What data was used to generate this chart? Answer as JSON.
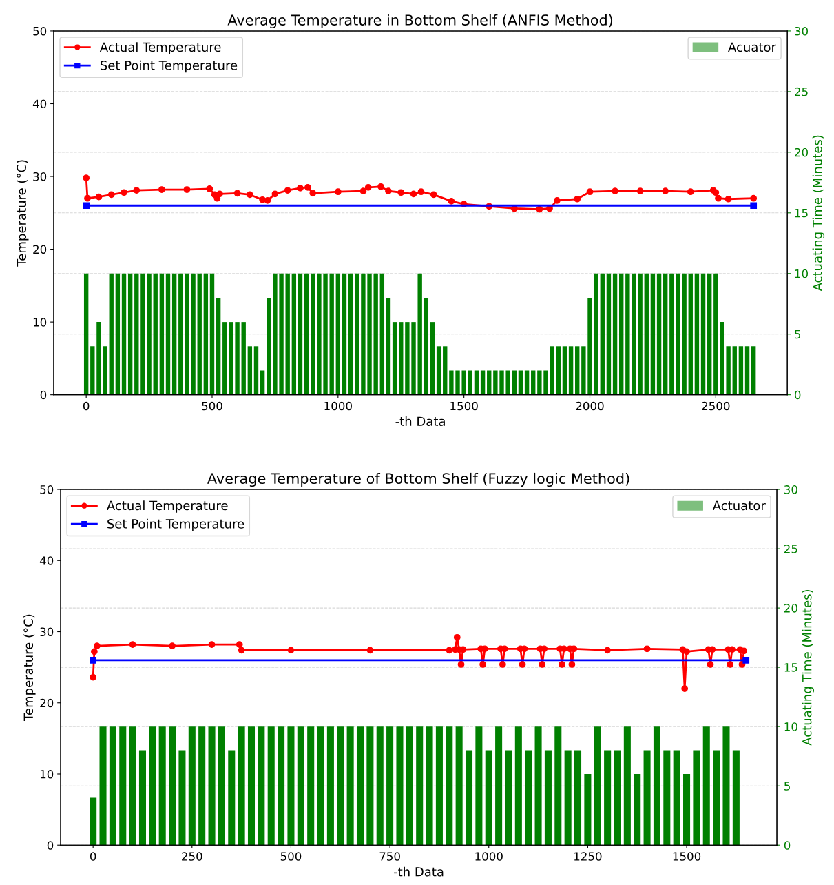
{
  "chart_data": [
    {
      "type": "line",
      "title": "Average Temperature in Bottom Shelf (ANFIS Method)",
      "xlabel": "-th Data",
      "ylabel": "Temperature (°C)",
      "y2label": "Actuating Time (Minutes)",
      "xlim": [
        -129,
        2784
      ],
      "xticks": [
        0,
        500,
        1000,
        1500,
        2000,
        2500
      ],
      "ylim": [
        0,
        50
      ],
      "yticks": [
        0,
        10,
        20,
        30,
        40,
        50
      ],
      "y2lim": [
        0,
        30
      ],
      "y2ticks": [
        0,
        5,
        10,
        15,
        20,
        25,
        30
      ],
      "grid": "y2",
      "legend": "top left",
      "series": [
        {
          "name": "Actual Temperature",
          "color": "#ff0000",
          "marker": "circle",
          "x": [
            0,
            5,
            50,
            100,
            150,
            200,
            300,
            400,
            490,
            510,
            520,
            530,
            600,
            650,
            700,
            720,
            750,
            800,
            850,
            880,
            900,
            1000,
            1100,
            1120,
            1170,
            1200,
            1250,
            1300,
            1330,
            1380,
            1450,
            1500,
            1600,
            1700,
            1800,
            1840,
            1870,
            1950,
            2000,
            2100,
            2200,
            2300,
            2400,
            2490,
            2500,
            2510,
            2550,
            2650
          ],
          "values": [
            29.8,
            27.0,
            27.2,
            27.5,
            27.8,
            28.1,
            28.2,
            28.2,
            28.3,
            27.5,
            27.0,
            27.6,
            27.7,
            27.5,
            26.8,
            26.7,
            27.6,
            28.1,
            28.4,
            28.5,
            27.7,
            27.9,
            28.0,
            28.5,
            28.6,
            28.0,
            27.8,
            27.6,
            27.9,
            27.5,
            26.6,
            26.2,
            25.9,
            25.6,
            25.5,
            25.6,
            26.7,
            26.9,
            27.9,
            28.0,
            28.0,
            28.0,
            27.9,
            28.1,
            27.8,
            27.0,
            26.9,
            27.0
          ]
        },
        {
          "name": "Set Point Temperature",
          "color": "#0000ff",
          "marker": "square",
          "x": [
            0,
            2650
          ],
          "values": [
            26,
            26
          ]
        },
        {
          "name": "Acuator",
          "type": "bar",
          "axis": "y2",
          "color": "#008000",
          "x": [
            0,
            25,
            50,
            75,
            100,
            125,
            150,
            175,
            200,
            225,
            250,
            275,
            300,
            325,
            350,
            375,
            400,
            425,
            450,
            475,
            500,
            525,
            550,
            575,
            600,
            625,
            650,
            675,
            700,
            725,
            750,
            775,
            800,
            825,
            850,
            875,
            900,
            925,
            950,
            975,
            1000,
            1025,
            1050,
            1075,
            1100,
            1125,
            1150,
            1175,
            1200,
            1225,
            1250,
            1275,
            1300,
            1325,
            1350,
            1375,
            1400,
            1425,
            1450,
            1475,
            1500,
            1525,
            1550,
            1575,
            1600,
            1625,
            1650,
            1675,
            1700,
            1725,
            1750,
            1775,
            1800,
            1825,
            1850,
            1875,
            1900,
            1925,
            1950,
            1975,
            2000,
            2025,
            2050,
            2075,
            2100,
            2125,
            2150,
            2175,
            2200,
            2225,
            2250,
            2275,
            2300,
            2325,
            2350,
            2375,
            2400,
            2425,
            2450,
            2475,
            2500,
            2525,
            2550,
            2575,
            2600,
            2625,
            2650
          ],
          "values": [
            10,
            4,
            6,
            4,
            10,
            10,
            10,
            10,
            10,
            10,
            10,
            10,
            10,
            10,
            10,
            10,
            10,
            10,
            10,
            10,
            10,
            8,
            6,
            6,
            6,
            6,
            4,
            4,
            2,
            8,
            10,
            10,
            10,
            10,
            10,
            10,
            10,
            10,
            10,
            10,
            10,
            10,
            10,
            10,
            10,
            10,
            10,
            10,
            8,
            6,
            6,
            6,
            6,
            10,
            8,
            6,
            4,
            4,
            2,
            2,
            2,
            2,
            2,
            2,
            2,
            2,
            2,
            2,
            2,
            2,
            2,
            2,
            2,
            2,
            4,
            4,
            4,
            4,
            4,
            4,
            8,
            10,
            10,
            10,
            10,
            10,
            10,
            10,
            10,
            10,
            10,
            10,
            10,
            10,
            10,
            10,
            10,
            10,
            10,
            10,
            10,
            6,
            4,
            4,
            4,
            4,
            4
          ]
        }
      ]
    },
    {
      "type": "line",
      "title": "Average Temperature of Bottom Shelf (Fuzzy logic Method)",
      "xlabel": "-th Data",
      "ylabel": "Temperature (°C)",
      "y2label": "Actuating Time (Minutes)",
      "xlim": [
        -82,
        1728
      ],
      "xticks": [
        0,
        250,
        500,
        750,
        1000,
        1250,
        1500
      ],
      "ylim": [
        0,
        50
      ],
      "yticks": [
        0,
        10,
        20,
        30,
        40,
        50
      ],
      "y2lim": [
        0,
        30
      ],
      "y2ticks": [
        0,
        5,
        10,
        15,
        20,
        25,
        30
      ],
      "grid": "y2",
      "legend": "top left",
      "series": [
        {
          "name": "Actual Temperature",
          "color": "#ff0000",
          "marker": "circle",
          "x": [
            0,
            3,
            10,
            100,
            200,
            300,
            370,
            375,
            500,
            700,
            900,
            915,
            920,
            925,
            930,
            935,
            980,
            985,
            990,
            1030,
            1035,
            1040,
            1080,
            1085,
            1090,
            1130,
            1135,
            1140,
            1180,
            1185,
            1190,
            1205,
            1210,
            1215,
            1300,
            1400,
            1490,
            1495,
            1500,
            1555,
            1560,
            1565,
            1605,
            1610,
            1615,
            1635,
            1640,
            1645
          ],
          "values": [
            23.6,
            27.2,
            28.0,
            28.2,
            28.0,
            28.2,
            28.2,
            27.4,
            27.4,
            27.4,
            27.4,
            27.5,
            29.2,
            27.5,
            25.4,
            27.5,
            27.6,
            25.4,
            27.6,
            27.6,
            25.4,
            27.6,
            27.6,
            25.4,
            27.6,
            27.6,
            25.4,
            27.6,
            27.6,
            25.4,
            27.6,
            27.6,
            25.4,
            27.6,
            27.4,
            27.6,
            27.5,
            22.0,
            27.2,
            27.5,
            25.4,
            27.5,
            27.5,
            25.4,
            27.5,
            27.5,
            25.4,
            27.3
          ]
        },
        {
          "name": "Set Point Temperature",
          "color": "#0000ff",
          "marker": "square",
          "x": [
            0,
            1650
          ],
          "values": [
            26,
            26
          ]
        },
        {
          "name": "Actuator",
          "type": "bar",
          "axis": "y2",
          "color": "#008000",
          "x": [
            0,
            25,
            50,
            75,
            100,
            125,
            150,
            175,
            200,
            225,
            250,
            275,
            300,
            325,
            350,
            375,
            400,
            425,
            450,
            475,
            500,
            525,
            550,
            575,
            600,
            625,
            650,
            675,
            700,
            725,
            750,
            775,
            800,
            825,
            850,
            875,
            900,
            925,
            950,
            975,
            1000,
            1025,
            1050,
            1075,
            1100,
            1125,
            1150,
            1175,
            1200,
            1225,
            1250,
            1275,
            1300,
            1325,
            1350,
            1375,
            1400,
            1425,
            1450,
            1475,
            1500,
            1525,
            1550,
            1575,
            1600,
            1625
          ],
          "values": [
            4,
            10,
            10,
            10,
            10,
            8,
            10,
            10,
            10,
            8,
            10,
            10,
            10,
            10,
            8,
            10,
            10,
            10,
            10,
            10,
            10,
            10,
            10,
            10,
            10,
            10,
            10,
            10,
            10,
            10,
            10,
            10,
            10,
            10,
            10,
            10,
            10,
            10,
            8,
            10,
            8,
            10,
            8,
            10,
            8,
            10,
            8,
            10,
            8,
            8,
            6,
            10,
            8,
            8,
            10,
            6,
            8,
            10,
            8,
            8,
            6,
            8,
            10,
            8,
            10,
            8
          ]
        }
      ]
    }
  ]
}
